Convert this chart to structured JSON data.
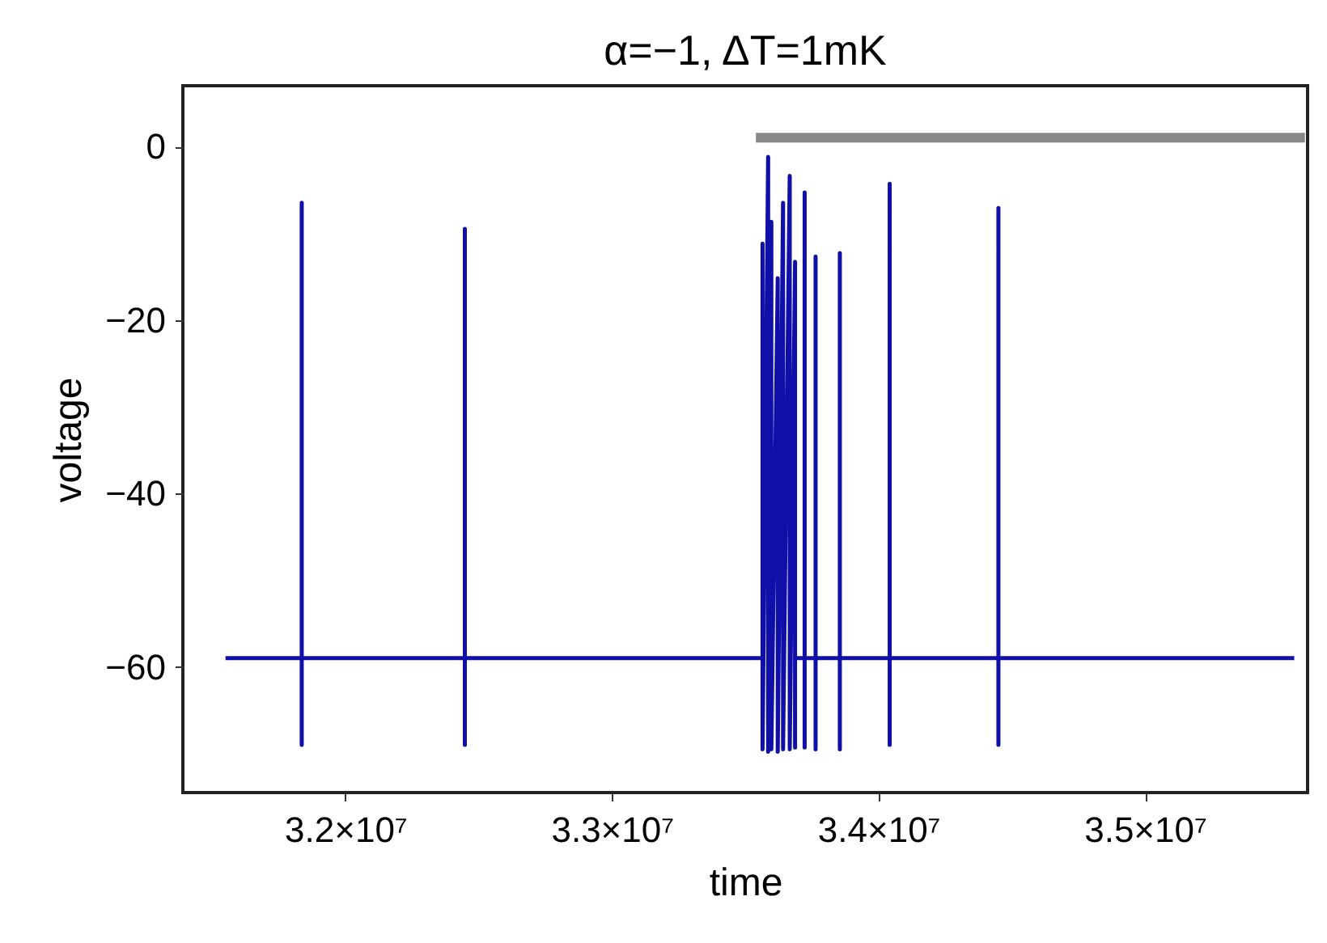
{
  "chart_data": {
    "type": "line",
    "title": "α=−1, ΔT=1mK",
    "xlabel": "time",
    "ylabel": "voltage",
    "xlim": [
      31390000,
      35610000
    ],
    "ylim": [
      -74.5,
      7
    ],
    "xticks": [
      {
        "value": 32000000,
        "label": "3.2×10⁷"
      },
      {
        "value": 33000000,
        "label": "3.3×10⁷"
      },
      {
        "value": 34000000,
        "label": "3.4×10⁷"
      },
      {
        "value": 35000000,
        "label": "3.5×10⁷"
      }
    ],
    "yticks": [
      0,
      -20,
      -40,
      -60
    ],
    "grid": false,
    "marker": "none",
    "line_style": "solid",
    "series": [
      {
        "color": "#1010a8",
        "x": [
          31550000,
          31836000,
          31836000,
          31836000,
          31836000,
          32448000,
          32448000,
          32448000,
          32448000,
          33565000,
          33565000,
          33565000,
          33586000,
          33586000,
          33598000,
          33598000,
          33622000,
          33622000,
          33642000,
          33642000,
          33667000,
          33667000,
          33687000,
          33687000,
          33687000,
          33723000,
          33723000,
          33723000,
          33723000,
          33764000,
          33764000,
          33764000,
          33764000,
          33855000,
          33855000,
          33855000,
          33855000,
          34042000,
          34042000,
          34042000,
          34042000,
          34450000,
          34450000,
          34450000,
          34450000,
          35560000
        ],
        "values": [
          -59,
          -59,
          -6.5,
          -69,
          -59,
          -59,
          -9.5,
          -69,
          -59,
          -59,
          -11.2,
          -69.5,
          -1.2,
          -69.8,
          -8.7,
          -69.5,
          -15.2,
          -69.8,
          -6.5,
          -69.5,
          -3.4,
          -69.5,
          -13.3,
          -69.3,
          -59,
          -59,
          -5.3,
          -69.3,
          -59,
          -59,
          -12.7,
          -69.5,
          -59,
          -59,
          -12.3,
          -69.5,
          -59,
          -59,
          -4.3,
          -69,
          -59,
          -59,
          -7.1,
          -69,
          -59,
          -59
        ]
      },
      {
        "color": "#888888",
        "x": [
          33540000,
          35600000
        ],
        "values": [
          1,
          1
        ]
      }
    ]
  }
}
